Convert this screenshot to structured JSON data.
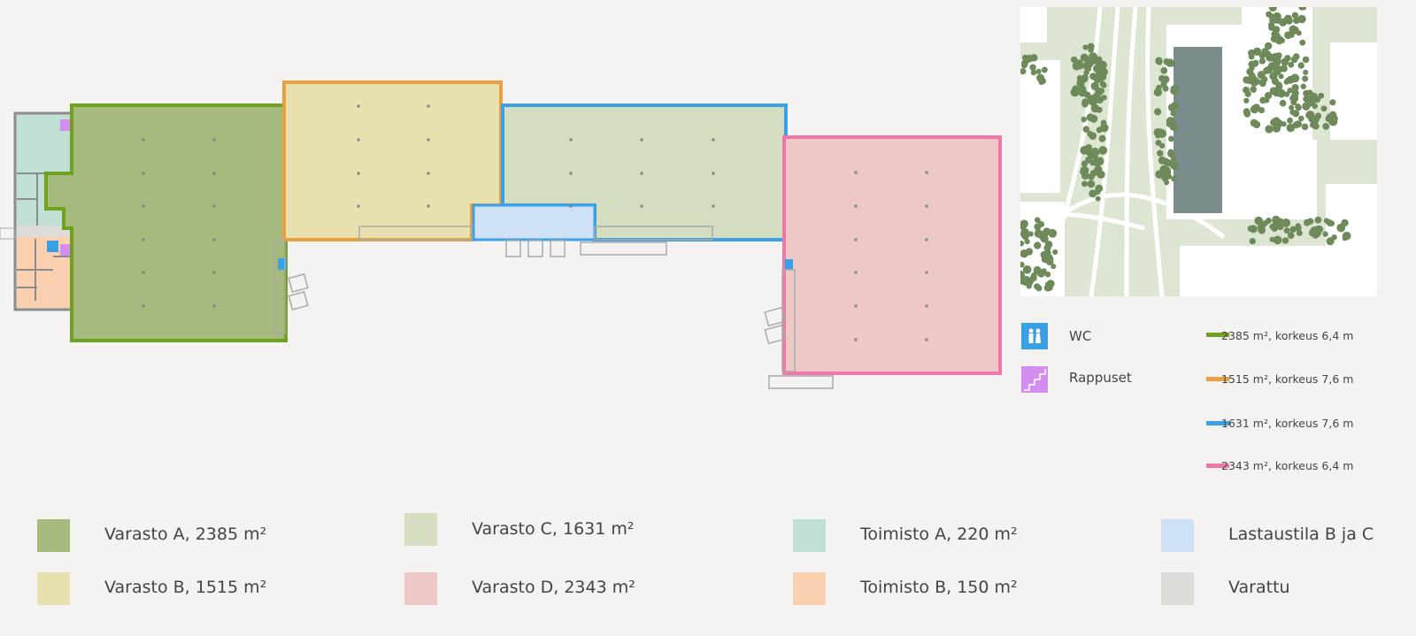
{
  "colors": {
    "background": "#f4f3f1",
    "varasto_a": {
      "fill": "#a6ba7e",
      "border": "#6fa31f"
    },
    "varasto_b": {
      "fill": "#e6e1ae",
      "border": "#eba040"
    },
    "varasto_c": {
      "fill": "#d4ddc0",
      "border": "#3ba0e6"
    },
    "varasto_d": {
      "fill": "#eec8c7",
      "border": "#ef78a8"
    },
    "toimisto_a": "#bfe0d3",
    "toimisto_b": "#fbd0b1",
    "lastaustila": "#cfe1f7",
    "varattu": "#dedcd8",
    "wc": "#3aa0e6",
    "rappuset": "#d38ef0"
  },
  "symbols": [
    {
      "icon": "wc-icon",
      "label": "WC"
    },
    {
      "icon": "stairs-icon",
      "label": "Rappuset"
    }
  ],
  "height_legend": [
    {
      "color": "#6fa31f",
      "label": "2385 m², korkeus 6,4 m"
    },
    {
      "color": "#eba040",
      "label": "1515 m², korkeus 7,6 m"
    },
    {
      "color": "#3ba0e6",
      "label": "1631 m², korkeus 7,6 m"
    },
    {
      "color": "#ef78a8",
      "label": "2343 m², korkeus 6,4 m"
    }
  ],
  "area_legend": [
    {
      "color": "#a6ba7e",
      "label": "Varasto A, 2385 m²"
    },
    {
      "color": "#e6e1ae",
      "label": "Varasto B, 1515 m²"
    },
    {
      "color": "#d4ddc0",
      "label": "Varasto C, 1631 m²"
    },
    {
      "color": "#eec8c7",
      "label": "Varasto D, 2343 m²"
    },
    {
      "color": "#bfe0d3",
      "label": "Toimisto A, 220 m²"
    },
    {
      "color": "#fbd0b1",
      "label": "Toimisto B, 150 m²"
    },
    {
      "color": "#cfe1f7",
      "label": "Lastaustila B ja C"
    },
    {
      "color": "#dedcd8",
      "label": "Varattu"
    }
  ]
}
